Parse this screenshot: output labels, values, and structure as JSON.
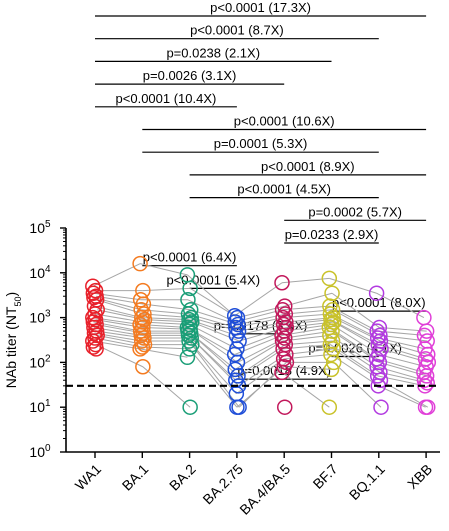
{
  "chart_data": {
    "type": "scatter",
    "categories": [
      "WA1",
      "BA.1",
      "BA.2",
      "BA.2.75",
      "BA.4/BA.5",
      "BF.7",
      "BQ.1.1",
      "XBB"
    ],
    "colors": [
      "#e8202a",
      "#f47b20",
      "#1a9e77",
      "#1f4ed8",
      "#c2185b",
      "#c9c22a",
      "#b23ae0",
      "#e03fd8"
    ],
    "ylabel_main": "NAb titer (NT",
    "ylabel_sub": "50",
    "ylabel_close": ")",
    "yscale": "log",
    "ylim": [
      1,
      100000
    ],
    "yticks": [
      {
        "base": "10",
        "exp": "0",
        "value": 1
      },
      {
        "base": "10",
        "exp": "1",
        "value": 10
      },
      {
        "base": "10",
        "exp": "2",
        "value": 100
      },
      {
        "base": "10",
        "exp": "3",
        "value": 1000
      },
      {
        "base": "10",
        "exp": "4",
        "value": 10000
      },
      {
        "base": "10",
        "exp": "5",
        "value": 100000
      }
    ],
    "threshold": 30,
    "paired_lines": true,
    "series": [
      {
        "category": "WA1",
        "values": [
          5000,
          4000,
          3500,
          3000,
          2800,
          2500,
          1800,
          1500,
          1200,
          1000,
          900,
          800,
          700,
          600,
          500,
          450,
          400,
          350,
          300,
          250,
          220,
          200
        ]
      },
      {
        "category": "BA.1",
        "values": [
          16000,
          4000,
          2500,
          2000,
          1500,
          1200,
          1000,
          900,
          800,
          700,
          600,
          500,
          450,
          400,
          350,
          300,
          250,
          220,
          200,
          80
        ]
      },
      {
        "category": "BA.2",
        "values": [
          9000,
          4500,
          2500,
          1500,
          1200,
          1000,
          900,
          800,
          700,
          600,
          550,
          500,
          450,
          400,
          350,
          300,
          250,
          200,
          130,
          10
        ]
      },
      {
        "category": "BA.2.75",
        "values": [
          1100,
          1000,
          800,
          700,
          600,
          500,
          400,
          300,
          200,
          150,
          100,
          70,
          50,
          40,
          30,
          20,
          10,
          10
        ]
      },
      {
        "category": "BA.4/BA.5",
        "values": [
          6000,
          1800,
          1500,
          1200,
          1000,
          800,
          700,
          600,
          500,
          400,
          350,
          300,
          250,
          200,
          150,
          120,
          100,
          80,
          60,
          10
        ]
      },
      {
        "category": "BF.7",
        "values": [
          7500,
          3500,
          1800,
          1500,
          1200,
          1000,
          900,
          800,
          700,
          600,
          500,
          400,
          300,
          250,
          200,
          150,
          100,
          70,
          10
        ]
      },
      {
        "category": "BQ.1.1",
        "values": [
          3500,
          600,
          500,
          400,
          350,
          300,
          250,
          200,
          150,
          120,
          100,
          80,
          60,
          50,
          40,
          30,
          10
        ]
      },
      {
        "category": "XBB",
        "values": [
          1000,
          500,
          400,
          300,
          200,
          150,
          120,
          100,
          80,
          60,
          50,
          40,
          35,
          30,
          10,
          10
        ]
      }
    ],
    "comparisons": [
      {
        "from": "WA1",
        "to": "XBB",
        "label": "p<0.0001 (17.3X)"
      },
      {
        "from": "WA1",
        "to": "BQ.1.1",
        "label": "p<0.0001 (8.7X)"
      },
      {
        "from": "WA1",
        "to": "BF.7",
        "label": "p=0.0238 (2.1X)"
      },
      {
        "from": "WA1",
        "to": "BA.4/BA.5",
        "label": "p=0.0026 (3.1X)"
      },
      {
        "from": "WA1",
        "to": "BA.2.75",
        "label": "p<0.0001 (10.4X)"
      },
      {
        "from": "BA.1",
        "to": "XBB",
        "label": "p<0.0001 (10.6X)"
      },
      {
        "from": "BA.1",
        "to": "BQ.1.1",
        "label": "p=0.0001 (5.3X)"
      },
      {
        "from": "BA.2",
        "to": "XBB",
        "label": "p<0.0001 (8.9X)"
      },
      {
        "from": "BA.2",
        "to": "BQ.1.1",
        "label": "p<0.0001 (4.5X)"
      },
      {
        "from": "BA.4/BA.5",
        "to": "XBB",
        "label": "p=0.0002 (5.7X)"
      },
      {
        "from": "BA.4/BA.5",
        "to": "BQ.1.1",
        "label": "p=0.0233 (2.9X)"
      },
      {
        "from": "BA.1",
        "to": "BA.2.75",
        "label": "p<0.0001 (6.4X)"
      },
      {
        "from": "BA.2",
        "to": "BA.2.75",
        "label": "p<0.0001 (5.4X)"
      },
      {
        "from": "BF.7",
        "to": "XBB",
        "label": "p<0.0001 (8.0X)"
      },
      {
        "from": "BA.2.75",
        "to": "BA.4/BA.5",
        "label": "p=0.0178 (3.4X)"
      },
      {
        "from": "BF.7",
        "to": "BQ.1.1",
        "label": "p=0.0026 (4.1X)"
      },
      {
        "from": "BA.2.75",
        "to": "BF.7",
        "label": "p=0.0018 (4.9X)"
      }
    ]
  }
}
